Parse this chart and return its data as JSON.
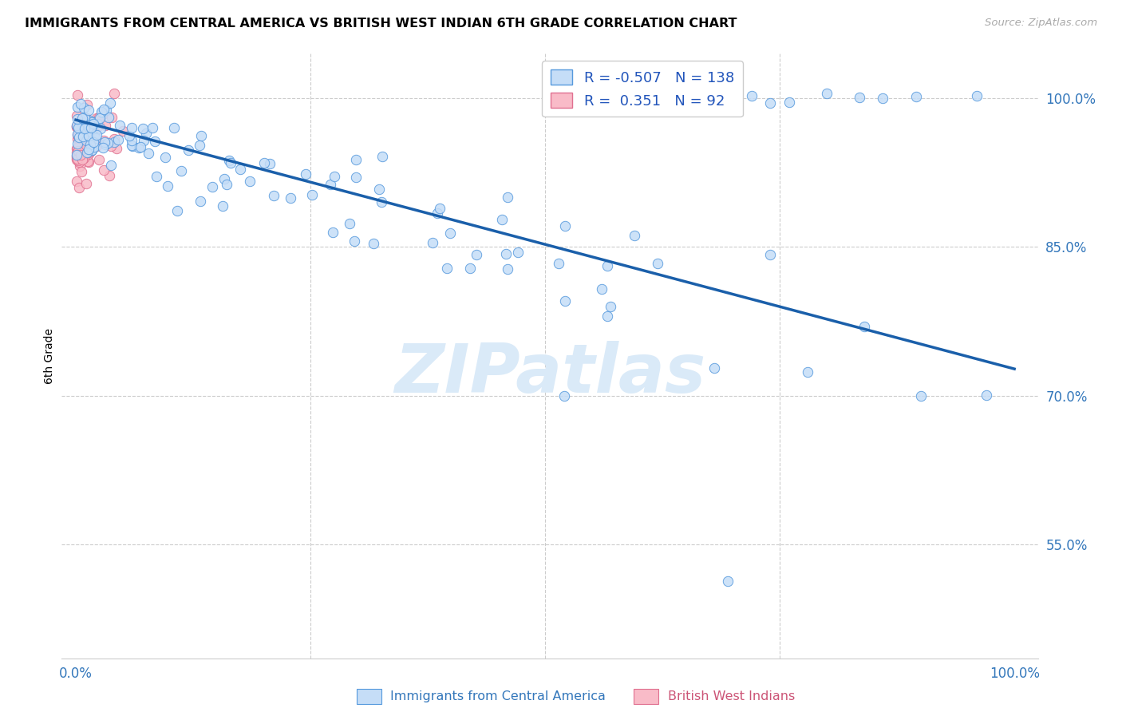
{
  "title": "IMMIGRANTS FROM CENTRAL AMERICA VS BRITISH WEST INDIAN 6TH GRADE CORRELATION CHART",
  "source": "Source: ZipAtlas.com",
  "ylabel": "6th Grade",
  "blue_R": -0.507,
  "blue_N": 138,
  "pink_R": 0.351,
  "pink_N": 92,
  "blue_fill": "#c5ddf7",
  "blue_edge": "#5599dd",
  "blue_line_color": "#1a5faa",
  "pink_fill": "#f9bbc8",
  "pink_edge": "#e07090",
  "watermark_color": "#daeaf8",
  "watermark_text": "ZIPatlas",
  "legend_label_blue": "Immigrants from Central America",
  "legend_label_pink": "British West Indians",
  "y_tick_vals": [
    0.55,
    0.7,
    0.85,
    1.0
  ],
  "y_tick_labels": [
    "55.0%",
    "70.0%",
    "85.0%",
    "100.0%"
  ],
  "x_tick_vals": [
    0.0,
    1.0
  ],
  "x_tick_labels": [
    "0.0%",
    "100.0%"
  ],
  "xlim": [
    -0.015,
    1.025
  ],
  "ylim": [
    0.435,
    1.045
  ],
  "blue_line_x0": 0.0,
  "blue_line_y0": 0.978,
  "blue_line_x1": 1.0,
  "blue_line_y1": 0.727,
  "tick_color": "#3377bb",
  "grid_color": "#cccccc",
  "source_color": "#aaaaaa",
  "legend_text_color": "#2255bb"
}
